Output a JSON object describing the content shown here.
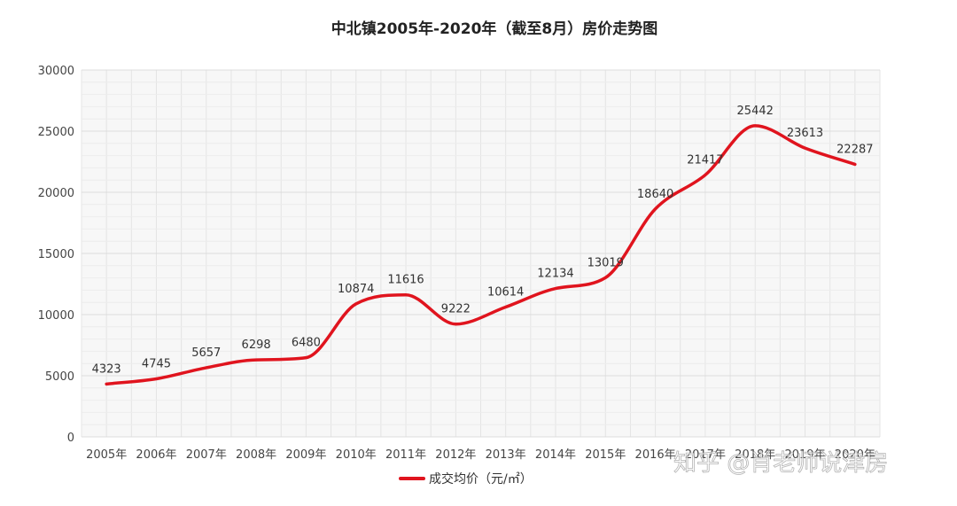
{
  "chart_data": {
    "type": "line",
    "title": "中北镇2005年-2020年（截至8月）房价走势图",
    "categories": [
      "2005年",
      "2006年",
      "2007年",
      "2008年",
      "2009年",
      "2010年",
      "2011年",
      "2012年",
      "2013年",
      "2014年",
      "2015年",
      "2016年",
      "2017年",
      "2018年",
      "2019年",
      "2020年"
    ],
    "series": [
      {
        "name": "成交均价（元/㎡）",
        "values": [
          4323,
          4745,
          5657,
          6298,
          6480,
          10874,
          11616,
          9222,
          10614,
          12134,
          13019,
          18640,
          21417,
          25442,
          23613,
          22287
        ],
        "color": "#e0141e"
      }
    ],
    "ylim": [
      0,
      30000
    ],
    "yticks": [
      0,
      5000,
      10000,
      15000,
      20000,
      25000,
      30000
    ],
    "grid": true,
    "legend_position": "bottom-center"
  },
  "watermark": "知乎 @肖老师说津房"
}
